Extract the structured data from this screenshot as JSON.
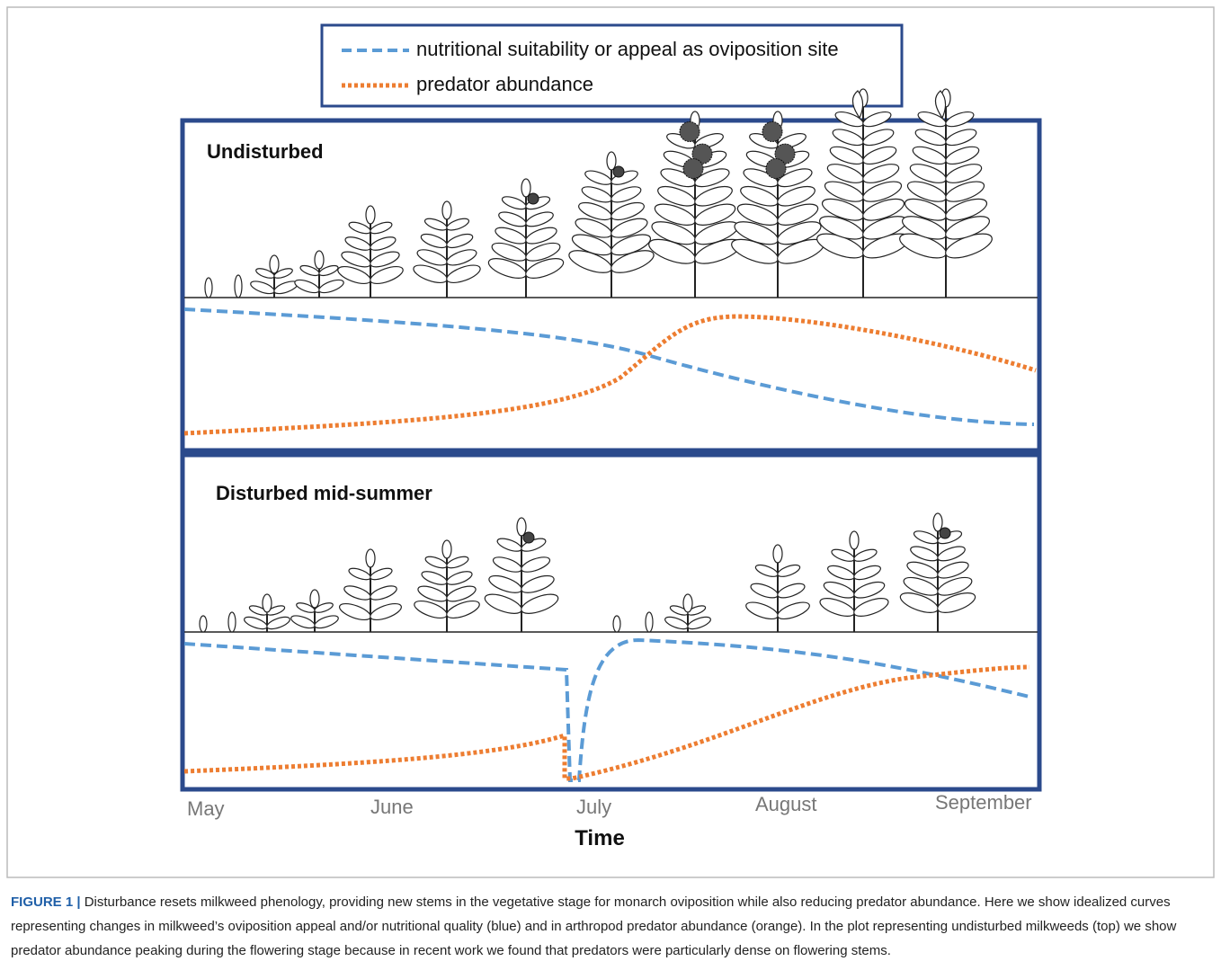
{
  "legend": {
    "items": [
      "nutritional suitability or appeal as oviposition site",
      "predator abundance"
    ]
  },
  "panels": [
    {
      "title": "Undisturbed"
    },
    {
      "title": "Disturbed mid-summer"
    }
  ],
  "x_axis": {
    "labels": [
      "May",
      "June",
      "July",
      "August",
      "September"
    ],
    "title": "Time"
  },
  "caption": {
    "label": "FIGURE 1 |",
    "text": "Disturbance resets milkweed phenology, providing new stems in the vegetative stage for monarch oviposition while also reducing predator abundance. Here we show idealized curves representing changes in milkweed’s oviposition appeal and/or nutritional quality (blue) and in arthropod predator abundance (orange). In the plot representing undisturbed milkweeds (top) we show predator abundance peaking during the flowering stage because in recent work we found that predators were particularly dense on flowering stems."
  }
}
